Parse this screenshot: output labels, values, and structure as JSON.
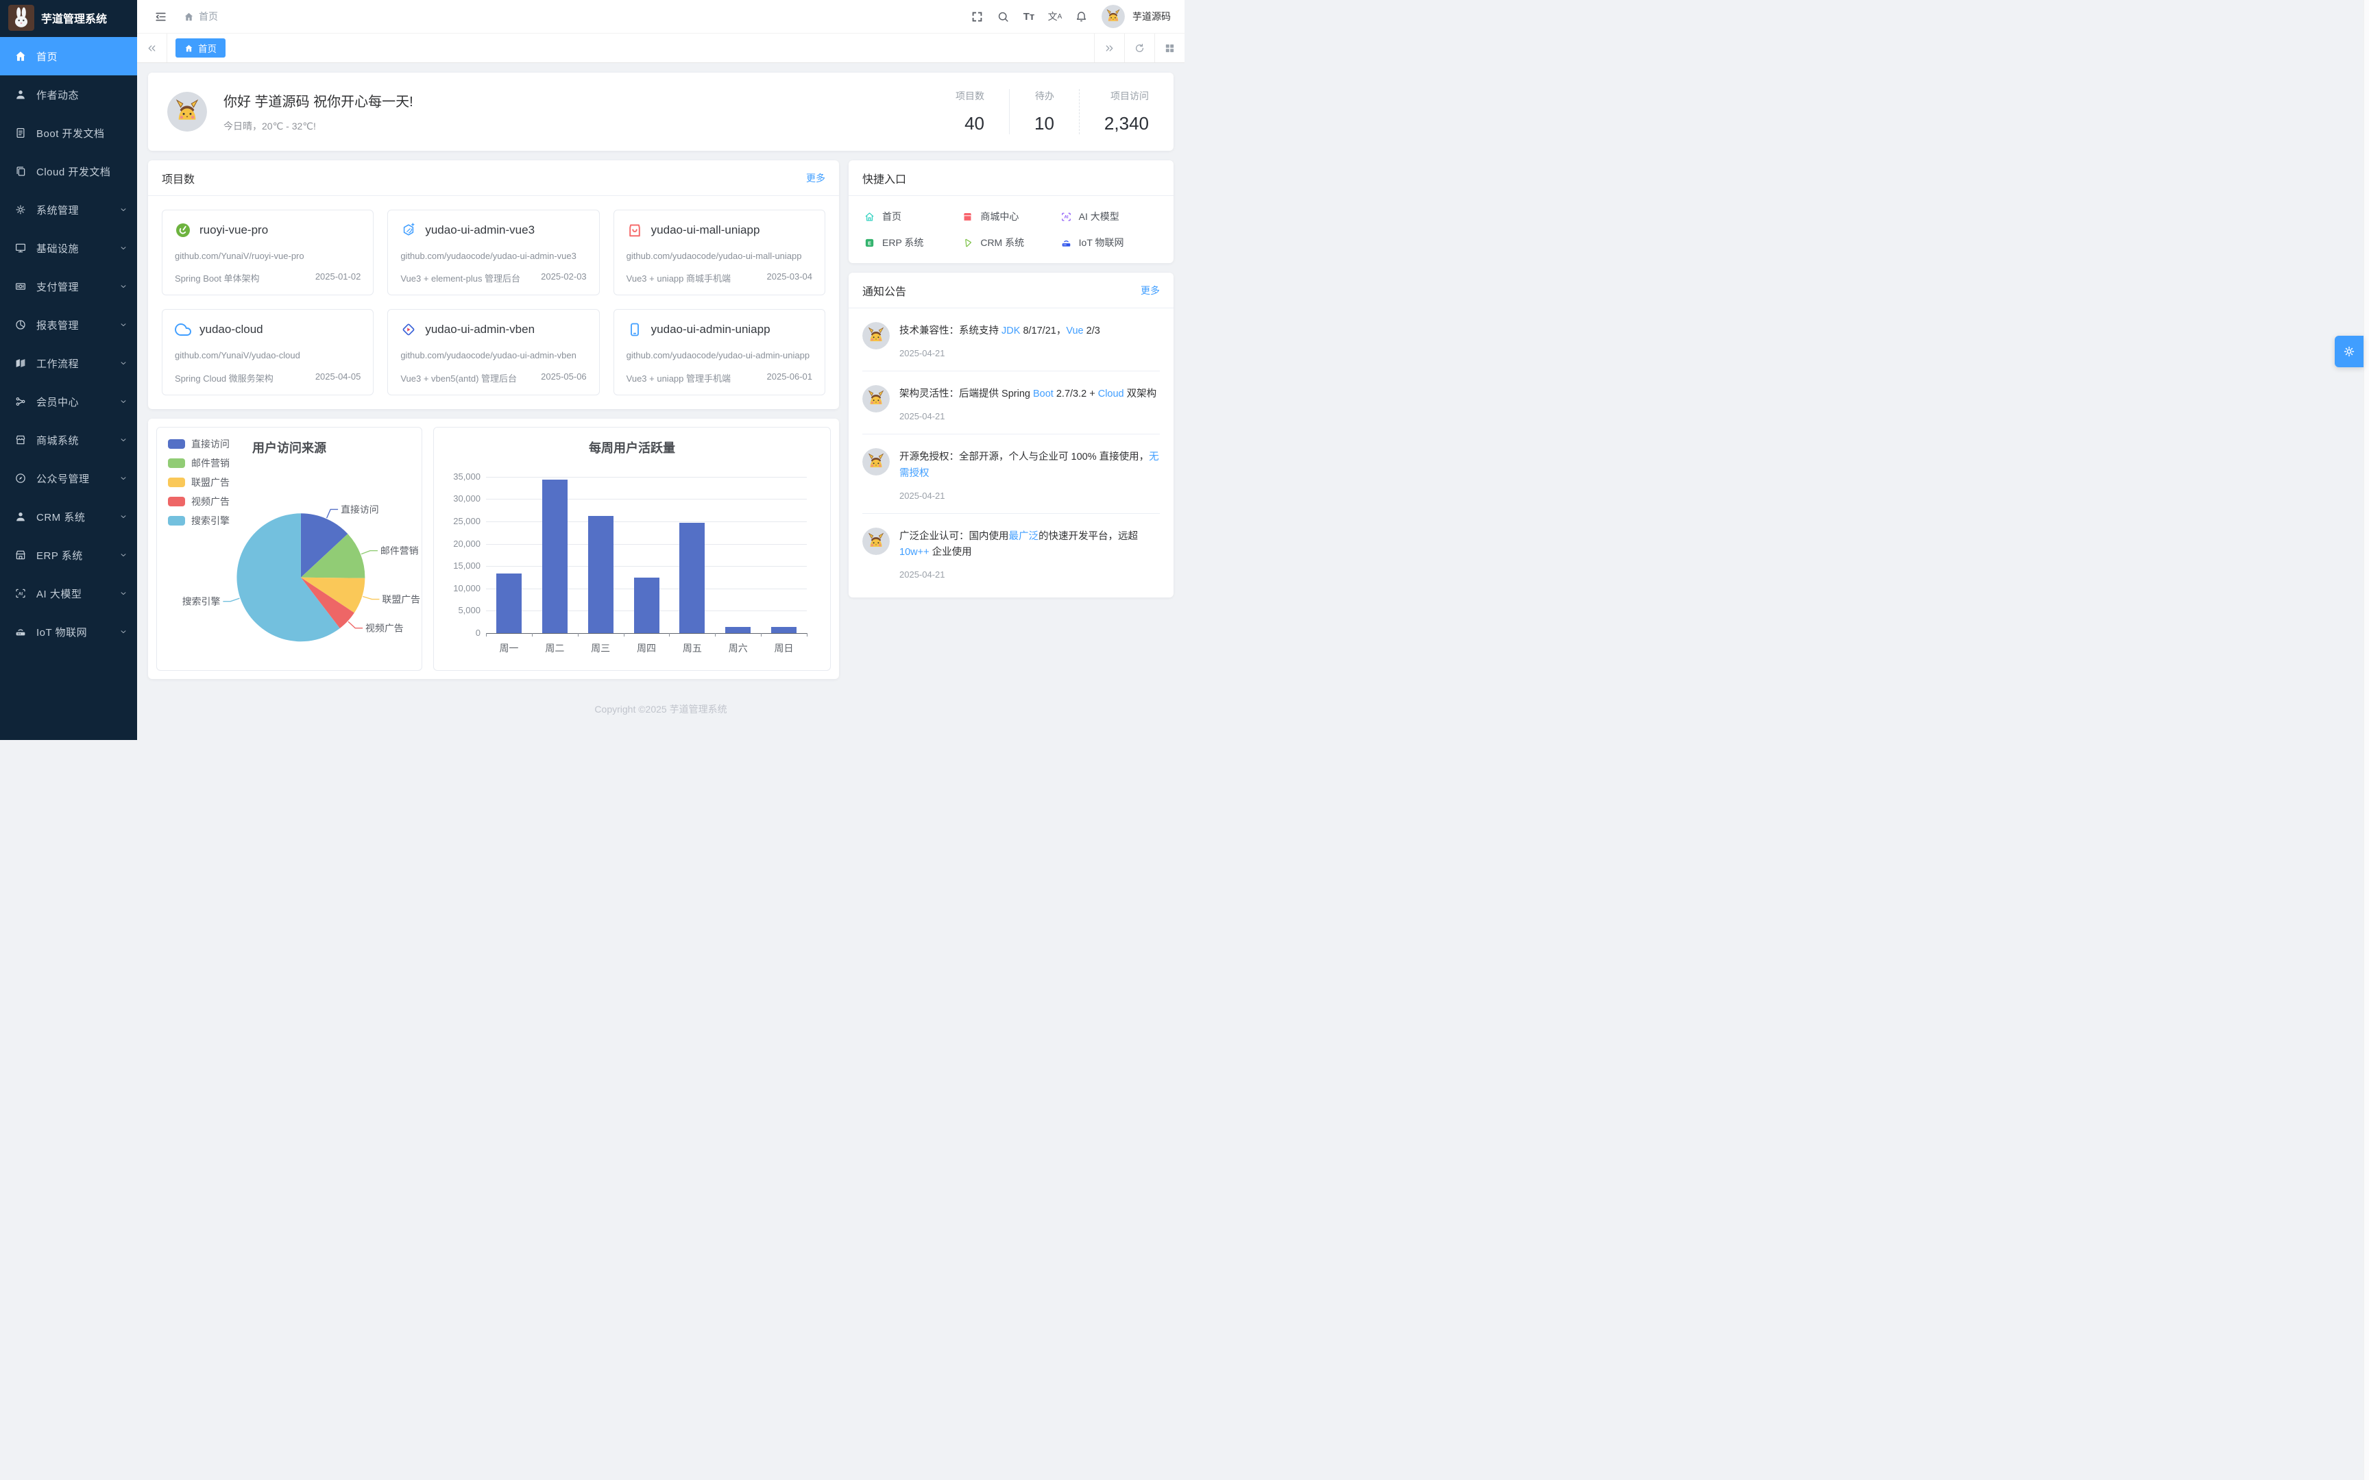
{
  "colors": {
    "primary": "#409eff",
    "sidebar_bg": "#0f2438",
    "content_bg": "#f0f2f5",
    "link": "#409eff"
  },
  "sidebar": {
    "logo_title": "芋道管理系统",
    "items": [
      {
        "id": "home",
        "label": "首页",
        "icon": "home",
        "active": true,
        "expandable": false
      },
      {
        "id": "author",
        "label": "作者动态",
        "icon": "user",
        "active": false,
        "expandable": false
      },
      {
        "id": "boot-doc",
        "label": "Boot 开发文档",
        "icon": "doc",
        "active": false,
        "expandable": false
      },
      {
        "id": "cloud-doc",
        "label": "Cloud 开发文档",
        "icon": "copy",
        "active": false,
        "expandable": false
      },
      {
        "id": "system",
        "label": "系统管理",
        "icon": "gear",
        "active": false,
        "expandable": true
      },
      {
        "id": "infra",
        "label": "基础设施",
        "icon": "monitor",
        "active": false,
        "expandable": true
      },
      {
        "id": "pay",
        "label": "支付管理",
        "icon": "money",
        "active": false,
        "expandable": true
      },
      {
        "id": "report",
        "label": "报表管理",
        "icon": "piechart",
        "active": false,
        "expandable": true
      },
      {
        "id": "workflow",
        "label": "工作流程",
        "icon": "workflow",
        "active": false,
        "expandable": true
      },
      {
        "id": "member",
        "label": "会员中心",
        "icon": "share",
        "active": false,
        "expandable": true
      },
      {
        "id": "mall",
        "label": "商城系统",
        "icon": "shop",
        "active": false,
        "expandable": true
      },
      {
        "id": "mp",
        "label": "公众号管理",
        "icon": "compass",
        "active": false,
        "expandable": true
      },
      {
        "id": "crm",
        "label": "CRM 系统",
        "icon": "user",
        "active": false,
        "expandable": true
      },
      {
        "id": "erp",
        "label": "ERP 系统",
        "icon": "store",
        "active": false,
        "expandable": true
      },
      {
        "id": "ai",
        "label": "AI 大模型",
        "icon": "ai",
        "active": false,
        "expandable": true
      },
      {
        "id": "iot",
        "label": "IoT 物联网",
        "icon": "iot",
        "active": false,
        "expandable": true
      }
    ]
  },
  "navbar": {
    "breadcrumb": "首页",
    "username": "芋道源码"
  },
  "tabs": {
    "active": "首页"
  },
  "welcome": {
    "greeting": "你好 芋道源码 祝你开心每一天!",
    "weather": "今日晴，20℃ - 32℃!",
    "stats": [
      {
        "label": "项目数",
        "value": "40"
      },
      {
        "label": "待办",
        "value": "10"
      },
      {
        "label": "项目访问",
        "value": "2,340"
      }
    ]
  },
  "projects": {
    "title": "项目数",
    "more": "更多",
    "cards": [
      {
        "name": "ruoyi-vue-pro",
        "icon": "spring",
        "url": "github.com/YunaiV/ruoyi-vue-pro",
        "desc": "Spring Boot 单体架构",
        "date": "2025-01-02"
      },
      {
        "name": "yudao-ui-admin-vue3",
        "icon": "vue3",
        "url": "github.com/yudaocode/yudao-ui-admin-vue3",
        "desc": "Vue3 + element-plus 管理后台",
        "date": "2025-02-03"
      },
      {
        "name": "yudao-ui-mall-uniapp",
        "icon": "mall",
        "url": "github.com/yudaocode/yudao-ui-mall-uniapp",
        "desc": "Vue3 + uniapp 商城手机端",
        "date": "2025-03-04"
      },
      {
        "name": "yudao-cloud",
        "icon": "cloud",
        "url": "github.com/YunaiV/yudao-cloud",
        "desc": "Spring Cloud 微服务架构",
        "date": "2025-04-05"
      },
      {
        "name": "yudao-ui-admin-vben",
        "icon": "vben",
        "url": "github.com/yudaocode/yudao-ui-admin-vben",
        "desc": "Vue3 + vben5(antd) 管理后台",
        "date": "2025-05-06"
      },
      {
        "name": "yudao-ui-admin-uniapp",
        "icon": "uniapp",
        "url": "github.com/yudaocode/yudao-ui-admin-uniapp",
        "desc": "Vue3 + uniapp 管理手机端",
        "date": "2025-06-01"
      }
    ]
  },
  "quick": {
    "title": "快捷入口",
    "items": [
      {
        "label": "首页",
        "icon": "q_home",
        "color": "#2ed0bf"
      },
      {
        "label": "商城中心",
        "icon": "q_mall",
        "color": "#f7626b"
      },
      {
        "label": "AI 大模型",
        "icon": "q_ai",
        "color": "#8650f6"
      },
      {
        "label": "ERP 系统",
        "icon": "q_erp",
        "color": "#34b36e"
      },
      {
        "label": "CRM 系统",
        "icon": "q_crm",
        "color": "#7ac143"
      },
      {
        "label": "IoT 物联网",
        "icon": "q_iot",
        "color": "#2f54eb"
      }
    ]
  },
  "notices": {
    "title": "通知公告",
    "more": "更多",
    "items": [
      {
        "date": "2025-04-21",
        "title_segments": [
          {
            "text": "技术兼容性：系统支持 ",
            "highlight": false
          },
          {
            "text": "JDK",
            "highlight": true
          },
          {
            "text": " 8/17/21，",
            "highlight": false
          },
          {
            "text": "Vue",
            "highlight": true
          },
          {
            "text": " 2/3",
            "highlight": false
          }
        ]
      },
      {
        "date": "2025-04-21",
        "title_segments": [
          {
            "text": "架构灵活性：后端提供 Spring ",
            "highlight": false
          },
          {
            "text": "Boot",
            "highlight": true
          },
          {
            "text": " 2.7/3.2 + ",
            "highlight": false
          },
          {
            "text": "Cloud",
            "highlight": true
          },
          {
            "text": " 双架构",
            "highlight": false
          }
        ]
      },
      {
        "date": "2025-04-21",
        "title_segments": [
          {
            "text": "开源免授权：全部开源，个人与企业可 100% 直接使用，",
            "highlight": false
          },
          {
            "text": "无需授权",
            "highlight": true
          }
        ]
      },
      {
        "date": "2025-04-21",
        "title_segments": [
          {
            "text": "广泛企业认可：国内使用",
            "highlight": false
          },
          {
            "text": "最广泛",
            "highlight": true
          },
          {
            "text": "的快速开发平台，远超 ",
            "highlight": false
          },
          {
            "text": "10w++",
            "highlight": true
          },
          {
            "text": " 企业使用",
            "highlight": false
          }
        ]
      }
    ]
  },
  "chart_data": [
    {
      "type": "pie",
      "title": "用户访问来源",
      "legend": [
        "直接访问",
        "邮件营销",
        "联盟广告",
        "视频广告",
        "搜索引擎"
      ],
      "series": [
        {
          "name": "直接访问",
          "value": 335
        },
        {
          "name": "邮件营销",
          "value": 310
        },
        {
          "name": "联盟广告",
          "value": 234
        },
        {
          "name": "视频广告",
          "value": 135
        },
        {
          "name": "搜索引擎",
          "value": 1548
        }
      ],
      "colors": [
        "#5470c6",
        "#91cc75",
        "#fac858",
        "#ee6666",
        "#73c0de"
      ],
      "legend_position": "top-left"
    },
    {
      "type": "bar",
      "title": "每周用户活跃量",
      "categories": [
        "周一",
        "周二",
        "周三",
        "周四",
        "周五",
        "周六",
        "周日"
      ],
      "values": [
        13300,
        34300,
        26300,
        12400,
        24700,
        1350,
        1350
      ],
      "ylim": [
        0,
        35000
      ],
      "ytick_step": 5000,
      "bar_color": "#5470c6",
      "grid": true,
      "legend_position": "none"
    }
  ],
  "footer": {
    "text": "Copyright ©2025 芋道管理系统"
  }
}
